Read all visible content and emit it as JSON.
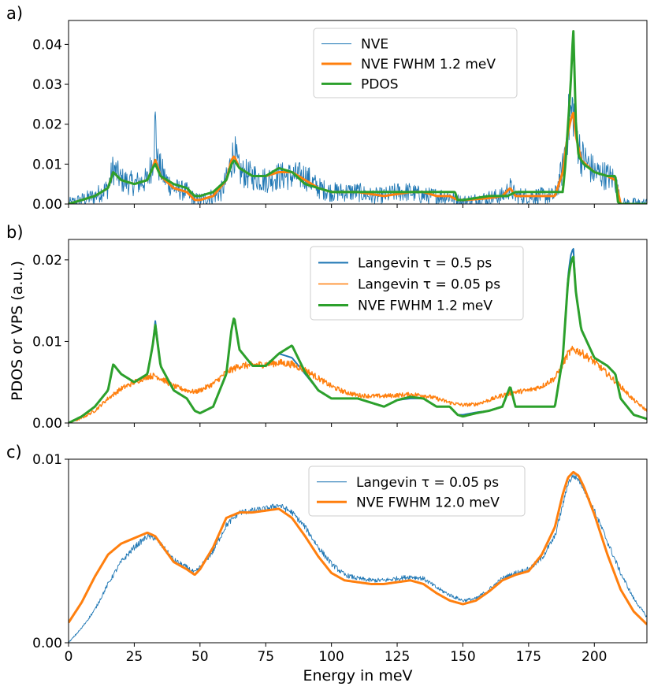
{
  "figure": {
    "shared_xlabel": "Energy in meV",
    "shared_ylabel": "PDOS or VPS (a.u.)",
    "x_ticks": [
      0,
      25,
      50,
      75,
      100,
      125,
      150,
      175,
      200
    ],
    "xlim": [
      0,
      220
    ]
  },
  "chart_data": [
    {
      "panel": "a)",
      "type": "line",
      "ylim": [
        0,
        0.046
      ],
      "y_ticks": [
        "0.00",
        "0.01",
        "0.02",
        "0.03",
        "0.04"
      ],
      "y_tick_values": [
        0,
        0.01,
        0.02,
        0.03,
        0.04
      ],
      "legend": {
        "placement": "top-center"
      },
      "series": [
        {
          "name": "NVE",
          "color": "#1f77b4",
          "width": 0.9,
          "noisy": true,
          "noise": 0.004,
          "x": [
            0,
            5,
            10,
            15,
            17,
            20,
            25,
            30,
            32,
            33,
            34,
            37,
            40,
            45,
            48,
            50,
            55,
            58,
            60,
            62,
            63,
            65,
            70,
            75,
            80,
            85,
            90,
            95,
            100,
            105,
            110,
            115,
            120,
            125,
            130,
            135,
            140,
            145,
            147,
            150,
            155,
            160,
            165,
            168,
            170,
            175,
            180,
            185,
            188,
            190,
            192,
            193,
            195,
            200,
            205,
            208,
            210,
            215,
            220
          ],
          "y": [
            0,
            0.001,
            0.002,
            0.004,
            0.009,
            0.006,
            0.005,
            0.006,
            0.011,
            0.02,
            0.01,
            0.006,
            0.004,
            0.003,
            0.001,
            0.001,
            0.002,
            0.003,
            0.006,
            0.011,
            0.013,
            0.008,
            0.007,
            0.006,
            0.007,
            0.007,
            0.007,
            0.004,
            0.003,
            0.003,
            0.003,
            0.002,
            0.002,
            0.003,
            0.003,
            0.002,
            0.002,
            0.002,
            0.001,
            0.0005,
            0.001,
            0.0015,
            0.002,
            0.004,
            0.002,
            0.002,
            0.002,
            0.002,
            0.009,
            0.02,
            0.024,
            0.018,
            0.012,
            0.008,
            0.007,
            0.006,
            0.0,
            0.0,
            0.0
          ]
        },
        {
          "name": "NVE FWHM 1.2 meV",
          "color": "#ff7f0e",
          "width": 3,
          "x": [
            0,
            5,
            10,
            15,
            17,
            20,
            25,
            30,
            32,
            33,
            35,
            40,
            45,
            48,
            50,
            55,
            60,
            62,
            63,
            65,
            70,
            75,
            80,
            85,
            90,
            95,
            100,
            105,
            110,
            115,
            120,
            125,
            130,
            135,
            140,
            145,
            148,
            150,
            155,
            160,
            165,
            168,
            170,
            175,
            180,
            185,
            188,
            190,
            191,
            192,
            193,
            195,
            200,
            205,
            208,
            210,
            215,
            220
          ],
          "y": [
            0,
            0.001,
            0.002,
            0.004,
            0.008,
            0.006,
            0.005,
            0.006,
            0.009,
            0.011,
            0.007,
            0.004,
            0.003,
            0.001,
            0.001,
            0.002,
            0.006,
            0.011,
            0.012,
            0.009,
            0.007,
            0.007,
            0.008,
            0.008,
            0.006,
            0.004,
            0.003,
            0.003,
            0.003,
            0.0025,
            0.002,
            0.0025,
            0.003,
            0.003,
            0.002,
            0.002,
            0.001,
            0.001,
            0.0012,
            0.0015,
            0.002,
            0.004,
            0.002,
            0.002,
            0.002,
            0.002,
            0.008,
            0.018,
            0.021,
            0.023,
            0.017,
            0.011,
            0.008,
            0.007,
            0.006,
            0.0,
            0.0,
            0.0
          ]
        },
        {
          "name": "PDOS",
          "color": "#2ca02c",
          "width": 3,
          "x": [
            0,
            5,
            10,
            15,
            17,
            20,
            25,
            30,
            32,
            33,
            35,
            40,
            45,
            48,
            50,
            55,
            60,
            62,
            63,
            65,
            70,
            75,
            80,
            85,
            90,
            95,
            100,
            110,
            120,
            130,
            140,
            147,
            148,
            150,
            160,
            167,
            170,
            180,
            188,
            189,
            190,
            191,
            192,
            193,
            194,
            196,
            200,
            205,
            208,
            209,
            210,
            215,
            220
          ],
          "y": [
            0,
            0.001,
            0.002,
            0.004,
            0.008,
            0.006,
            0.005,
            0.006,
            0.009,
            0.01,
            0.007,
            0.005,
            0.004,
            0.002,
            0.002,
            0.003,
            0.006,
            0.01,
            0.011,
            0.009,
            0.007,
            0.007,
            0.009,
            0.008,
            0.005,
            0.004,
            0.003,
            0.003,
            0.003,
            0.003,
            0.003,
            0.003,
            0.001,
            0.001,
            0.002,
            0.002,
            0.003,
            0.003,
            0.003,
            0.01,
            0.02,
            0.03,
            0.044,
            0.02,
            0.012,
            0.01,
            0.008,
            0.007,
            0.007,
            0.0005,
            0.0,
            0.0,
            0.0
          ]
        }
      ]
    },
    {
      "panel": "b)",
      "type": "line",
      "ylim": [
        0,
        0.0225
      ],
      "y_ticks": [
        "0.00",
        "0.01",
        "0.02"
      ],
      "y_tick_values": [
        0,
        0.01,
        0.02
      ],
      "legend": {
        "placement": "top-center"
      },
      "series": [
        {
          "name": "Langevin τ = 0.5 ps",
          "color": "#1f77b4",
          "width": 2,
          "x": [
            0,
            5,
            10,
            15,
            17,
            20,
            25,
            30,
            32,
            33,
            35,
            40,
            45,
            48,
            50,
            55,
            60,
            62,
            63,
            65,
            70,
            75,
            80,
            85,
            90,
            95,
            100,
            105,
            110,
            115,
            120,
            125,
            130,
            135,
            140,
            145,
            148,
            150,
            155,
            160,
            165,
            168,
            170,
            175,
            180,
            185,
            188,
            190,
            191,
            192,
            193,
            195,
            200,
            205,
            208,
            210,
            215,
            220
          ],
          "y": [
            0,
            0.0008,
            0.002,
            0.004,
            0.0072,
            0.006,
            0.005,
            0.006,
            0.0095,
            0.0125,
            0.007,
            0.004,
            0.003,
            0.0015,
            0.0012,
            0.002,
            0.006,
            0.0115,
            0.0128,
            0.009,
            0.007,
            0.007,
            0.0085,
            0.008,
            0.006,
            0.004,
            0.003,
            0.003,
            0.003,
            0.0025,
            0.002,
            0.0028,
            0.003,
            0.003,
            0.002,
            0.002,
            0.001,
            0.001,
            0.0013,
            0.0015,
            0.002,
            0.0045,
            0.002,
            0.002,
            0.002,
            0.002,
            0.008,
            0.018,
            0.0205,
            0.0215,
            0.016,
            0.0115,
            0.008,
            0.007,
            0.006,
            0.003,
            0.001,
            0.0005
          ]
        },
        {
          "name": "Langevin τ = 0.05 ps",
          "color": "#ff7f0e",
          "width": 1.4,
          "noisy": true,
          "noise": 0.0003,
          "x": [
            0,
            5,
            10,
            15,
            20,
            25,
            30,
            33,
            36,
            40,
            45,
            48,
            50,
            55,
            60,
            65,
            70,
            75,
            80,
            85,
            90,
            95,
            100,
            105,
            110,
            115,
            120,
            125,
            130,
            135,
            140,
            145,
            150,
            155,
            160,
            165,
            170,
            175,
            180,
            185,
            188,
            190,
            192,
            194,
            196,
            200,
            205,
            210,
            215,
            220
          ],
          "y": [
            0,
            0.0006,
            0.0015,
            0.003,
            0.0042,
            0.005,
            0.0057,
            0.0058,
            0.0053,
            0.0045,
            0.004,
            0.0038,
            0.004,
            0.0048,
            0.0062,
            0.007,
            0.0071,
            0.0072,
            0.0074,
            0.0072,
            0.0065,
            0.0055,
            0.0045,
            0.0038,
            0.0034,
            0.0033,
            0.0033,
            0.0034,
            0.0035,
            0.0034,
            0.003,
            0.0025,
            0.0022,
            0.0023,
            0.0028,
            0.0034,
            0.0038,
            0.004,
            0.0045,
            0.0055,
            0.0072,
            0.0085,
            0.009,
            0.0088,
            0.0084,
            0.0075,
            0.006,
            0.0045,
            0.0028,
            0.0015
          ]
        },
        {
          "name": "NVE FWHM 1.2 meV",
          "color": "#2ca02c",
          "width": 3,
          "x": [
            0,
            5,
            10,
            15,
            17,
            20,
            25,
            30,
            32,
            33,
            35,
            40,
            45,
            48,
            50,
            55,
            60,
            62,
            63,
            65,
            70,
            75,
            80,
            85,
            90,
            95,
            100,
            105,
            110,
            115,
            120,
            125,
            130,
            135,
            140,
            145,
            148,
            150,
            155,
            160,
            165,
            168,
            170,
            175,
            180,
            185,
            188,
            190,
            191,
            192,
            193,
            195,
            200,
            205,
            208,
            210,
            215,
            220
          ],
          "y": [
            0,
            0.0008,
            0.002,
            0.004,
            0.0072,
            0.006,
            0.005,
            0.006,
            0.0095,
            0.012,
            0.007,
            0.004,
            0.003,
            0.0015,
            0.0012,
            0.002,
            0.006,
            0.0115,
            0.013,
            0.009,
            0.007,
            0.007,
            0.0085,
            0.0095,
            0.0062,
            0.004,
            0.003,
            0.003,
            0.003,
            0.0025,
            0.002,
            0.0028,
            0.0032,
            0.003,
            0.002,
            0.002,
            0.001,
            0.0008,
            0.0012,
            0.0015,
            0.002,
            0.0045,
            0.002,
            0.002,
            0.002,
            0.002,
            0.008,
            0.0175,
            0.0195,
            0.0205,
            0.016,
            0.0115,
            0.008,
            0.007,
            0.006,
            0.003,
            0.001,
            0.0005
          ]
        }
      ]
    },
    {
      "panel": "c)",
      "type": "line",
      "ylim": [
        0,
        0.01
      ],
      "y_ticks": [
        "0.00",
        "0.01"
      ],
      "y_tick_values": [
        0,
        0.01
      ],
      "legend": {
        "placement": "top-center"
      },
      "series": [
        {
          "name": "Langevin τ = 0.05 ps",
          "color": "#1f77b4",
          "width": 0.9,
          "noisy": true,
          "noise": 8e-05,
          "x": [
            0,
            5,
            10,
            15,
            20,
            25,
            30,
            33,
            36,
            40,
            45,
            48,
            50,
            55,
            60,
            65,
            70,
            75,
            80,
            85,
            90,
            95,
            100,
            105,
            110,
            115,
            120,
            125,
            130,
            135,
            140,
            145,
            150,
            155,
            160,
            165,
            170,
            175,
            180,
            185,
            188,
            190,
            192,
            194,
            196,
            200,
            205,
            210,
            215,
            220
          ],
          "y": [
            0,
            0.0008,
            0.0018,
            0.0032,
            0.0044,
            0.0052,
            0.0058,
            0.0057,
            0.0052,
            0.0045,
            0.0041,
            0.0038,
            0.0041,
            0.005,
            0.0064,
            0.0071,
            0.0072,
            0.0073,
            0.0075,
            0.0071,
            0.0063,
            0.0052,
            0.0043,
            0.0037,
            0.0035,
            0.0034,
            0.0034,
            0.0035,
            0.0036,
            0.0035,
            0.003,
            0.0026,
            0.0023,
            0.0024,
            0.0029,
            0.0035,
            0.0038,
            0.004,
            0.0046,
            0.0058,
            0.0075,
            0.0087,
            0.0091,
            0.0089,
            0.0084,
            0.0072,
            0.0055,
            0.0038,
            0.0024,
            0.0014
          ]
        },
        {
          "name": "NVE FWHM 12.0 meV",
          "color": "#ff7f0e",
          "width": 3,
          "x": [
            0,
            5,
            10,
            15,
            20,
            25,
            30,
            33,
            36,
            40,
            45,
            48,
            50,
            55,
            60,
            65,
            70,
            75,
            80,
            85,
            90,
            95,
            100,
            105,
            110,
            115,
            120,
            125,
            130,
            135,
            140,
            145,
            150,
            155,
            160,
            165,
            170,
            175,
            180,
            185,
            188,
            190,
            192,
            194,
            196,
            200,
            205,
            210,
            215,
            220
          ],
          "y": [
            0.0011,
            0.0022,
            0.0036,
            0.0048,
            0.0054,
            0.0057,
            0.006,
            0.0058,
            0.0052,
            0.0044,
            0.004,
            0.0037,
            0.004,
            0.0052,
            0.0068,
            0.0071,
            0.0071,
            0.0072,
            0.0073,
            0.0068,
            0.0058,
            0.0047,
            0.0038,
            0.0034,
            0.0033,
            0.0032,
            0.0032,
            0.0033,
            0.0034,
            0.0032,
            0.0027,
            0.0023,
            0.0021,
            0.0023,
            0.0028,
            0.0034,
            0.0037,
            0.0039,
            0.0048,
            0.0063,
            0.0081,
            0.009,
            0.0093,
            0.0091,
            0.0085,
            0.007,
            0.0048,
            0.0029,
            0.0017,
            0.001
          ]
        }
      ]
    }
  ]
}
